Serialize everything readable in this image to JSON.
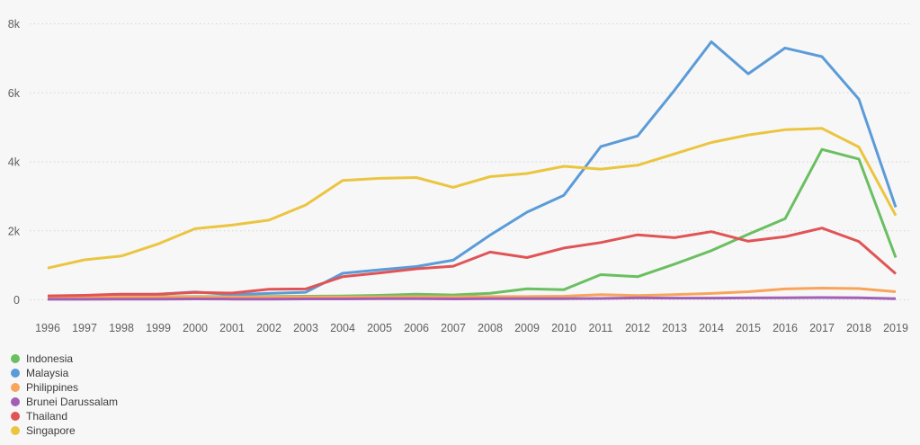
{
  "chart_data": {
    "type": "line",
    "title": "",
    "xlabel": "",
    "ylabel": "",
    "x": [
      1996,
      1997,
      1998,
      1999,
      2000,
      2001,
      2002,
      2003,
      2004,
      2005,
      2006,
      2007,
      2008,
      2009,
      2010,
      2011,
      2012,
      2013,
      2014,
      2015,
      2016,
      2017,
      2018,
      2019
    ],
    "series": [
      {
        "name": "Indonesia",
        "color": "#6abf60",
        "values": [
          75,
          85,
          90,
          90,
          95,
          95,
          100,
          105,
          110,
          130,
          165,
          140,
          190,
          320,
          295,
          730,
          670,
          1035,
          1425,
          1900,
          2350,
          4360,
          4080,
          1225
        ]
      },
      {
        "name": "Malaysia",
        "color": "#5b9bd8",
        "values": [
          60,
          95,
          130,
          165,
          230,
          150,
          185,
          220,
          770,
          870,
          965,
          1150,
          1875,
          2540,
          3030,
          4440,
          4750,
          6075,
          7480,
          6550,
          7300,
          7050,
          5815,
          2685
        ]
      },
      {
        "name": "Philippines",
        "color": "#f8a45b",
        "values": [
          85,
          85,
          80,
          80,
          85,
          80,
          85,
          85,
          80,
          85,
          90,
          85,
          95,
          95,
          105,
          150,
          125,
          150,
          185,
          235,
          315,
          340,
          325,
          235
        ]
      },
      {
        "name": "Brunei Darussalam",
        "color": "#a160b6",
        "values": [
          15,
          15,
          20,
          20,
          25,
          20,
          20,
          25,
          25,
          30,
          30,
          25,
          30,
          30,
          35,
          40,
          55,
          50,
          50,
          55,
          60,
          65,
          60,
          35
        ]
      },
      {
        "name": "Thailand",
        "color": "#e05456",
        "values": [
          115,
          130,
          165,
          165,
          215,
          195,
          305,
          315,
          670,
          780,
          900,
          975,
          1385,
          1225,
          1500,
          1660,
          1885,
          1800,
          1975,
          1700,
          1830,
          2080,
          1690,
          755
        ]
      },
      {
        "name": "Singapore",
        "color": "#ebc540",
        "values": [
          920,
          1160,
          1270,
          1620,
          2060,
          2165,
          2310,
          2750,
          3460,
          3520,
          3545,
          3260,
          3570,
          3660,
          3870,
          3790,
          3900,
          4230,
          4560,
          4780,
          4930,
          4970,
          4430,
          2445
        ]
      }
    ],
    "yticks": [
      {
        "value": 0,
        "label": "0"
      },
      {
        "value": 2000,
        "label": "2k"
      },
      {
        "value": 4000,
        "label": "4k"
      },
      {
        "value": 6000,
        "label": "6k"
      },
      {
        "value": 8000,
        "label": "8k"
      }
    ],
    "ylim": [
      0,
      8000
    ],
    "grid": "horizontal-dotted",
    "legend_position": "bottom-left"
  },
  "colors": {
    "background": "#f7f7f7",
    "grid": "#d4d4d4",
    "axis_text": "#5f5f5f",
    "legend_text": "#3c3c3c"
  }
}
